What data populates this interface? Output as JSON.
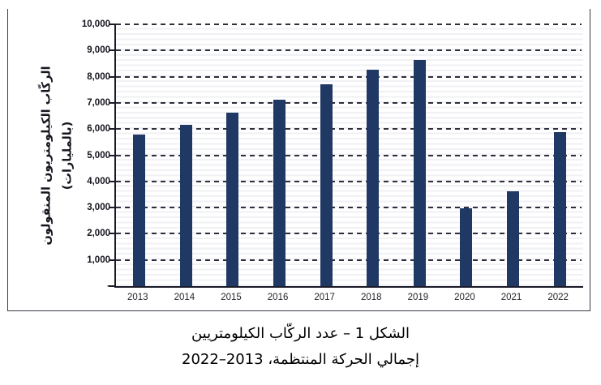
{
  "chart_data": {
    "type": "bar",
    "title": "",
    "categories": [
      "2013",
      "2014",
      "2015",
      "2016",
      "2017",
      "2018",
      "2019",
      "2020",
      "2021",
      "2022"
    ],
    "values": [
      5800,
      6170,
      6630,
      7130,
      7710,
      8260,
      8640,
      2960,
      3610,
      5870
    ],
    "ylabel_line1": "الركّاب الكيلومتريون المنقولون",
    "ylabel_line2": "(بالمليارات)",
    "xlabel": "",
    "ylim": [
      0,
      10000
    ],
    "ytick_step": 1000,
    "ytick_labels_top_to_bottom": [
      "10,000",
      "9,000",
      "8,000",
      "7,000",
      "6,000",
      "5,000",
      "4,000",
      "3,000",
      "2,000",
      "1,000",
      "-"
    ],
    "grid": "major-horizontal-dashed-with-light-minor-stripes",
    "legend_position": "none",
    "bar_color": "#1F3864",
    "axis_color": "#1B1B28",
    "gridline_color": "#2E2E3A"
  },
  "caption": {
    "line1": "الشكل 1 – عدد الركّاب الكيلومتريين",
    "line2": "إجمالي الحركة المنتظمة، 2013–2022"
  }
}
